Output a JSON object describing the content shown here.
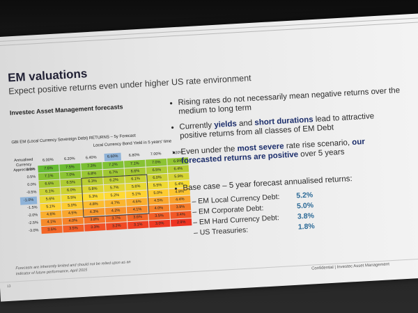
{
  "slide": {
    "title": "EM valuations",
    "subtitle": "Expect positive returns even under higher US rate environment",
    "left_heading": "Investec Asset Management forecasts",
    "footnote": "Forecasts are inherently limited and should not be relied upon as an indicator of future performance, April 2015",
    "footer": "Confidential | Investec Asset Management",
    "page_number": "13"
  },
  "bullets": {
    "b1": "Rising rates do not necessarily mean negative returns over the medium to long term",
    "b2_pre": "Currently ",
    "b2_yields": "yields",
    "b2_and": " and ",
    "b2_durations": "short durations",
    "b2_post": " lead to attractive positive returns from all classes of EM Debt",
    "b3_pre": "Even under the ",
    "b3_severe": "most severe",
    "b3_mid": " rate rise scenario, ",
    "b3_positive": "our forecasted returns are positive",
    "b3_post": " over 5 years"
  },
  "base_case": {
    "heading": "Base case – 5 year forecast annualised returns:",
    "items": [
      {
        "label": "– EM Local Currency Debt:",
        "value": "5.2%"
      },
      {
        "label": "– EM Corporate Debt:",
        "value": "5.0%"
      },
      {
        "label": "– EM Hard Currency Debt:",
        "value": "3.8%"
      },
      {
        "label": "– US Treasuries:",
        "value": "1.8%"
      }
    ]
  },
  "chart_data": {
    "type": "table",
    "title": "GBI EM (Local Currency Sovereign Debt) RETURNS – 5y Forecast",
    "col_axis_label": "Local Currency Bond Yield in 5 years' time",
    "row_axis_label": "Annualised Currency Appreciation",
    "columns": [
      "6.00%",
      "6.20%",
      "6.40%",
      "6.60%",
      "6.80%",
      "7.00%",
      "7.20%"
    ],
    "rows": [
      "1.0%",
      "0.5%",
      "0.0%",
      "-0.5%",
      "-1.0%",
      "-1.5%",
      "-2.0%",
      "-2.5%",
      "-3.0%"
    ],
    "highlight_column": "6.60%",
    "highlight_row": "-1.0%",
    "values": [
      [
        "7.6%",
        "7.5%",
        "7.3%",
        "7.2%",
        "7.1%",
        "7.0%",
        "6.9%"
      ],
      [
        "7.1%",
        "7.0%",
        "6.8%",
        "6.7%",
        "6.6%",
        "6.5%",
        "6.4%"
      ],
      [
        "6.6%",
        "6.5%",
        "6.3%",
        "6.2%",
        "6.1%",
        "6.0%",
        "5.9%"
      ],
      [
        "6.1%",
        "6.0%",
        "5.8%",
        "5.7%",
        "5.6%",
        "5.5%",
        "5.4%"
      ],
      [
        "5.6%",
        "5.5%",
        "5.3%",
        "5.2%",
        "5.1%",
        "5.0%",
        "4.9%"
      ],
      [
        "5.1%",
        "5.0%",
        "4.8%",
        "4.7%",
        "4.6%",
        "4.5%",
        "4.4%"
      ],
      [
        "4.6%",
        "4.5%",
        "4.3%",
        "4.2%",
        "4.1%",
        "4.0%",
        "3.9%"
      ],
      [
        "4.1%",
        "4.0%",
        "3.8%",
        "3.7%",
        "3.6%",
        "3.5%",
        "3.4%"
      ],
      [
        "3.6%",
        "3.5%",
        "3.3%",
        "3.2%",
        "3.1%",
        "3.0%",
        "2.9%"
      ]
    ],
    "scale_colors": {
      "high": "#66bb33",
      "mid": "#ffdd33",
      "low": "#ee3322"
    }
  }
}
